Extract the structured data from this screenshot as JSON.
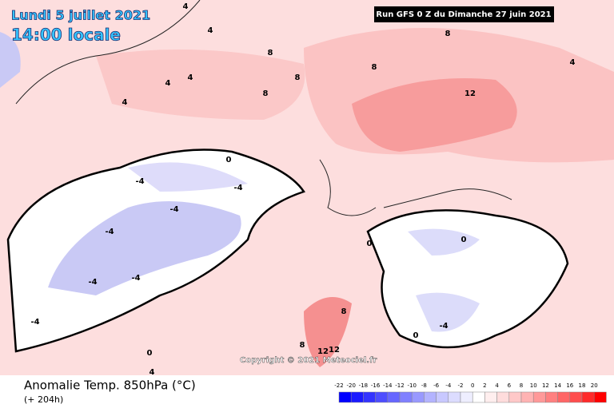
{
  "header": {
    "date": "Lundi 5 juillet 2021",
    "time": "14:00 locale",
    "run": "Run GFS 0 Z du Dimanche 27 juin 2021"
  },
  "copyright": "Copyright © 2021 Meteociel.fr",
  "footer": {
    "title": "Anomalie Temp. 850hPa (°C)",
    "lead": "(+ 204h)"
  },
  "legend": {
    "scale": [
      -22,
      -20,
      -18,
      -16,
      -14,
      -12,
      -10,
      -8,
      -6,
      -4,
      -2,
      0,
      2,
      4,
      6,
      8,
      10,
      12,
      14,
      16,
      18,
      20
    ],
    "colors": [
      "#0000ff",
      "#1a1aff",
      "#3333ff",
      "#4d4dff",
      "#6666ff",
      "#8080ff",
      "#9999ff",
      "#b3b3ff",
      "#c8c8ff",
      "#dcdcff",
      "#eeeeff",
      "#ffffff",
      "#ffeeee",
      "#ffdcdc",
      "#ffc8c8",
      "#ffb3b3",
      "#ff9999",
      "#ff8080",
      "#ff6666",
      "#ff4d4d",
      "#ff2a2a",
      "#ff0000"
    ]
  },
  "contour_labels": [
    "4",
    "4",
    "8",
    "8",
    "8",
    "8",
    "4",
    "4",
    "4",
    "4",
    "8",
    "12",
    "0",
    "-4",
    "-4",
    "-4",
    "-4",
    "-4",
    "-4",
    "-4",
    "8",
    "8",
    "12",
    "12",
    "0",
    "0",
    "4",
    "0",
    "0",
    "-4"
  ]
}
